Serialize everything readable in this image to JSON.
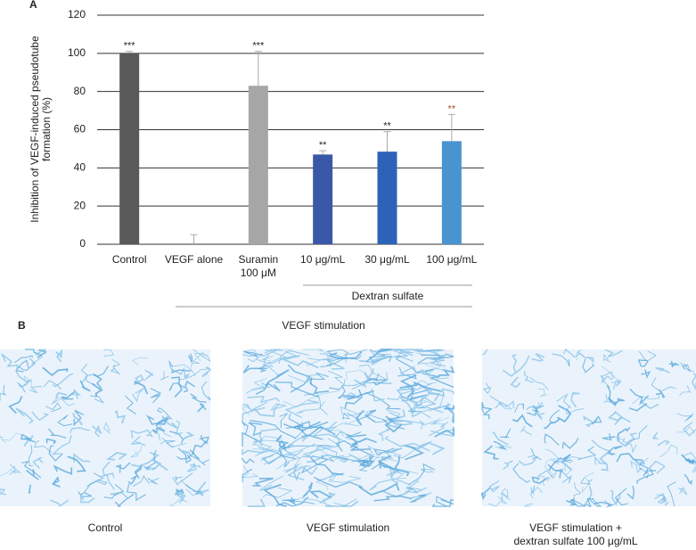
{
  "panel_a_label": "A",
  "chart_data": {
    "type": "bar",
    "y_label": [
      "Inhibition of VEGF-induced pseudotube",
      "formation (%)"
    ],
    "categories": [
      [
        "Control"
      ],
      [
        "VEGF alone"
      ],
      [
        "Suramin",
        "100 μM"
      ],
      [
        "10 μg/mL"
      ],
      [
        "30 μg/mL"
      ],
      [
        "100 μg/mL"
      ]
    ],
    "values": [
      100,
      0,
      83,
      47,
      48.5,
      54
    ],
    "errors": [
      1,
      5,
      18,
      2,
      10.5,
      14
    ],
    "colors": [
      "#595959",
      "#595959",
      "#a6a6a6",
      "#3a58a8",
      "#2d63b6",
      "#4a93d1"
    ],
    "annotations": [
      "***",
      null,
      "***",
      "**",
      "**",
      "**"
    ],
    "annotation_colors": [
      "#222222",
      null,
      "#222222",
      "#222222",
      "#222222",
      "#a0522d"
    ],
    "group_labels": [
      "Dextran sulfate",
      "VEGF stimulation"
    ],
    "ylim": [
      0,
      120
    ],
    "yticks": [
      0,
      20,
      40,
      60,
      80,
      100,
      120
    ],
    "grid": true
  },
  "panel_b": {
    "label": "B",
    "captions": [
      [
        "Control"
      ],
      [
        "VEGF stimulation"
      ],
      [
        "VEGF stimulation +",
        "dextran sulfate 100 μg/mL"
      ]
    ]
  }
}
